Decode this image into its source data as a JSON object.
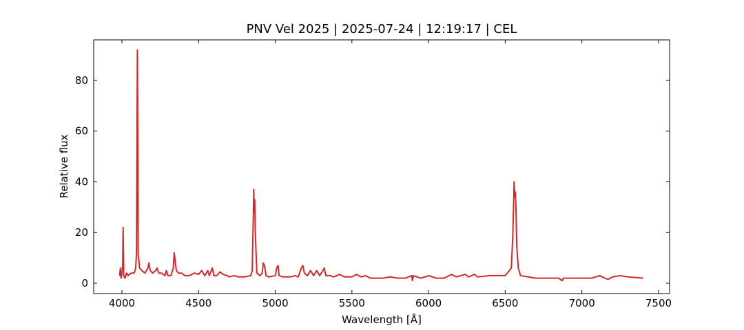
{
  "chart_data": {
    "type": "line",
    "title": "PNV Vel 2025 | 2025-07-24 | 12:19:17 | CEL",
    "xlabel": "Wavelength [Å]",
    "ylabel": "Relative flux",
    "color": "#d62728",
    "xlim": [
      3816,
      7572
    ],
    "ylim": [
      -4.07,
      96
    ],
    "xticks": [
      4000,
      4500,
      5000,
      5500,
      6000,
      6500,
      7000,
      7500
    ],
    "yticks": [
      0,
      20,
      40,
      60,
      80
    ],
    "x": [
      3985,
      3990,
      3995,
      4000,
      4005,
      4008,
      4012,
      4020,
      4030,
      4040,
      4060,
      4080,
      4090,
      4095,
      4101,
      4106,
      4115,
      4130,
      4150,
      4170,
      4175,
      4185,
      4200,
      4220,
      4230,
      4240,
      4260,
      4280,
      4290,
      4300,
      4320,
      4335,
      4341,
      4345,
      4355,
      4370,
      4390,
      4410,
      4440,
      4471,
      4500,
      4520,
      4540,
      4560,
      4570,
      4590,
      4600,
      4620,
      4640,
      4660,
      4686,
      4700,
      4730,
      4760,
      4800,
      4840,
      4850,
      4855,
      4860,
      4863,
      4866,
      4870,
      4880,
      4900,
      4915,
      4922,
      4930,
      4940,
      4960,
      5000,
      5010,
      5018,
      5025,
      5050,
      5100,
      5130,
      5150,
      5170,
      5180,
      5190,
      5210,
      5230,
      5250,
      5270,
      5290,
      5310,
      5320,
      5330,
      5360,
      5380,
      5420,
      5450,
      5500,
      5530,
      5560,
      5590,
      5620,
      5700,
      5750,
      5800,
      5850,
      5890,
      5895,
      5900,
      5950,
      6000,
      6050,
      6100,
      6150,
      6180,
      6240,
      6260,
      6300,
      6320,
      6400,
      6500,
      6540,
      6550,
      6558,
      6562,
      6566,
      6570,
      6575,
      6585,
      6600,
      6650,
      6700,
      6800,
      6850,
      6870,
      6880,
      6900,
      7000,
      7065,
      7115,
      7150,
      7170,
      7200,
      7250,
      7300,
      7400
    ],
    "values": [
      3,
      6,
      2,
      4,
      7,
      22,
      3,
      2,
      4,
      3,
      4,
      4,
      6,
      12,
      92,
      12,
      6,
      5,
      4,
      6,
      8,
      5,
      4,
      5,
      6,
      4,
      4,
      3,
      5,
      3,
      3,
      6,
      12,
      10,
      5,
      4,
      4,
      3,
      3,
      4,
      3.5,
      5,
      3,
      5,
      3,
      6,
      3,
      3,
      4.5,
      3.5,
      3,
      2.5,
      3,
      2.5,
      2.5,
      3,
      5,
      20,
      37,
      28,
      33,
      20,
      4,
      3,
      4,
      8,
      7,
      3,
      2.5,
      3,
      6,
      7,
      3,
      2.5,
      2.5,
      3,
      2.5,
      6,
      7,
      4,
      3,
      5,
      3,
      5,
      3,
      5,
      6,
      3,
      3,
      2.5,
      3.5,
      2.5,
      2.5,
      3.5,
      2.5,
      3,
      2,
      2,
      2.5,
      2,
      2,
      3,
      1,
      3,
      2,
      3,
      2,
      2,
      3.5,
      2.5,
      3.5,
      2.5,
      3.5,
      2.5,
      3,
      3,
      6,
      20,
      40,
      34,
      36,
      30,
      15,
      6,
      3,
      2.5,
      2,
      2,
      2,
      1,
      2,
      2,
      2,
      2,
      3,
      2,
      1.5,
      2.5,
      3,
      2.5,
      2
    ]
  }
}
